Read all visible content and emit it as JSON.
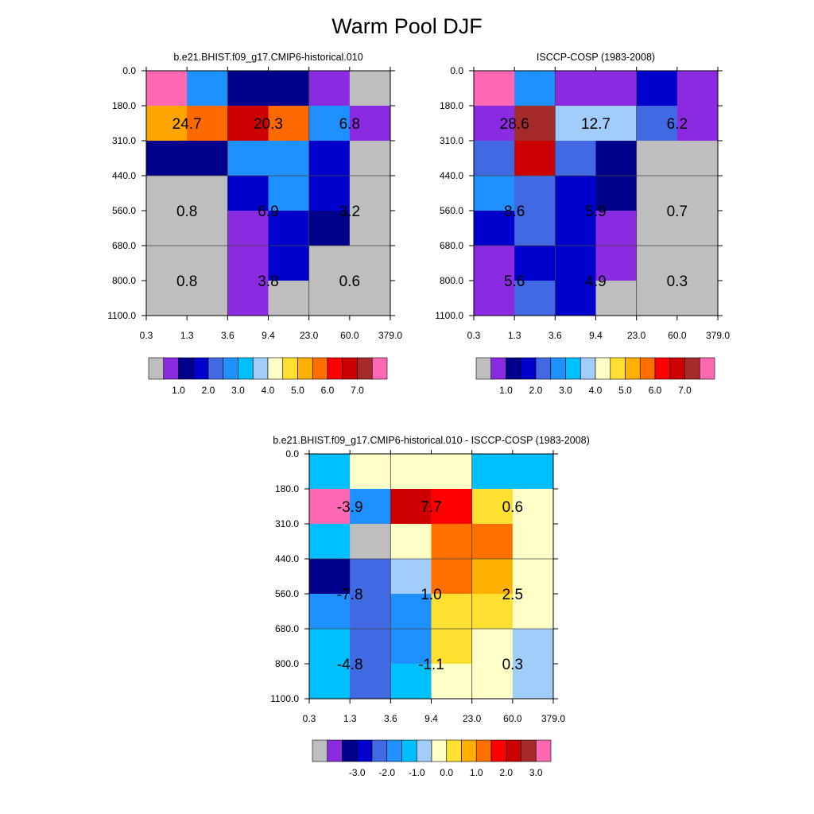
{
  "title": "Warm Pool DJF",
  "chart_data": [
    {
      "type": "heatmap",
      "title": "b.e21.BHIST.f09_g17.CMIP6-historical.010",
      "x_ticks": [
        "0.3",
        "1.3",
        "3.6",
        "9.4",
        "23.0",
        "60.0",
        "379.0"
      ],
      "y_ticks": [
        "0.0",
        "180.0",
        "310.0",
        "440.0",
        "560.0",
        "680.0",
        "800.0",
        "1100.0"
      ],
      "cells": [
        [
          "#FF69B4",
          "#1E90FF",
          "#00008B",
          "#00008B",
          "#8A2BE2",
          "#BEBEBE"
        ],
        [
          "#FFA500",
          "#FF6A00",
          "#CC0000",
          "#FF6A00",
          "#1E90FF",
          "#8A2BE2"
        ],
        [
          "#00008B",
          "#00008B",
          "#1E90FF",
          "#1E90FF",
          "#0000CD",
          "#BEBEBE"
        ],
        [
          "#BEBEBE",
          "#BEBEBE",
          "#0000CD",
          "#1E90FF",
          "#0000CD",
          "#BEBEBE"
        ],
        [
          "#BEBEBE",
          "#BEBEBE",
          "#8A2BE2",
          "#0000CD",
          "#00008B",
          "#BEBEBE"
        ],
        [
          "#BEBEBE",
          "#BEBEBE",
          "#8A2BE2",
          "#0000CD",
          "#BEBEBE",
          "#BEBEBE"
        ],
        [
          "#BEBEBE",
          "#BEBEBE",
          "#8A2BE2",
          "#BEBEBE",
          "#BEBEBE",
          "#BEBEBE"
        ]
      ],
      "annotations": [
        {
          "text": "24.7",
          "col": 1,
          "row": 1.5
        },
        {
          "text": "20.3",
          "col": 3,
          "row": 1.5
        },
        {
          "text": "6.8",
          "col": 5,
          "row": 1.5
        },
        {
          "text": "0.8",
          "col": 1,
          "row": 4
        },
        {
          "text": "6.9",
          "col": 3,
          "row": 4
        },
        {
          "text": "3.2",
          "col": 5,
          "row": 4
        },
        {
          "text": "0.8",
          "col": 1,
          "row": 6
        },
        {
          "text": "3.8",
          "col": 3,
          "row": 6
        },
        {
          "text": "0.6",
          "col": 5,
          "row": 6
        }
      ],
      "colorbar": {
        "colors": [
          "#BEBEBE",
          "#8A2BE2",
          "#00008B",
          "#0000CD",
          "#4169E1",
          "#1E90FF",
          "#00BFFF",
          "#A2CDFA",
          "#FFFFC8",
          "#FFE030",
          "#FFB000",
          "#FF7000",
          "#FF0000",
          "#CC0000",
          "#A52A2A",
          "#FF69B4"
        ],
        "labels": [
          "1.0",
          "2.0",
          "3.0",
          "4.0",
          "5.0",
          "6.0",
          "7.0"
        ],
        "label_start_index": 1
      }
    },
    {
      "type": "heatmap",
      "title": "ISCCP-COSP (1983-2008)",
      "x_ticks": [
        "0.3",
        "1.3",
        "3.6",
        "9.4",
        "23.0",
        "60.0",
        "379.0"
      ],
      "y_ticks": [
        "0.0",
        "180.0",
        "310.0",
        "440.0",
        "560.0",
        "680.0",
        "800.0",
        "1100.0"
      ],
      "cells": [
        [
          "#FF69B4",
          "#1E90FF",
          "#8A2BE2",
          "#8A2BE2",
          "#0000CD",
          "#8A2BE2"
        ],
        [
          "#8A2BE2",
          "#A52A2A",
          "#A2CDFA",
          "#A2CDFA",
          "#4169E1",
          "#8A2BE2"
        ],
        [
          "#4169E1",
          "#CC0000",
          "#4169E1",
          "#00008B",
          "#BEBEBE",
          "#BEBEBE"
        ],
        [
          "#1E90FF",
          "#4169E1",
          "#0000CD",
          "#00008B",
          "#BEBEBE",
          "#BEBEBE"
        ],
        [
          "#0000CD",
          "#4169E1",
          "#0000CD",
          "#8A2BE2",
          "#BEBEBE",
          "#BEBEBE"
        ],
        [
          "#8A2BE2",
          "#0000CD",
          "#0000CD",
          "#8A2BE2",
          "#BEBEBE",
          "#BEBEBE"
        ],
        [
          "#8A2BE2",
          "#4169E1",
          "#0000CD",
          "#BEBEBE",
          "#BEBEBE",
          "#BEBEBE"
        ]
      ],
      "annotations": [
        {
          "text": "28.6",
          "col": 1,
          "row": 1.5
        },
        {
          "text": "12.7",
          "col": 3,
          "row": 1.5
        },
        {
          "text": "6.2",
          "col": 5,
          "row": 1.5
        },
        {
          "text": "8.6",
          "col": 1,
          "row": 4
        },
        {
          "text": "5.9",
          "col": 3,
          "row": 4
        },
        {
          "text": "0.7",
          "col": 5,
          "row": 4
        },
        {
          "text": "5.6",
          "col": 1,
          "row": 6
        },
        {
          "text": "4.9",
          "col": 3,
          "row": 6
        },
        {
          "text": "0.3",
          "col": 5,
          "row": 6
        }
      ],
      "colorbar": {
        "colors": [
          "#BEBEBE",
          "#8A2BE2",
          "#00008B",
          "#0000CD",
          "#4169E1",
          "#1E90FF",
          "#00BFFF",
          "#A2CDFA",
          "#FFFFC8",
          "#FFE030",
          "#FFB000",
          "#FF7000",
          "#FF0000",
          "#CC0000",
          "#A52A2A",
          "#FF69B4"
        ],
        "labels": [
          "1.0",
          "2.0",
          "3.0",
          "4.0",
          "5.0",
          "6.0",
          "7.0"
        ],
        "label_start_index": 1
      }
    },
    {
      "type": "heatmap",
      "title": "b.e21.BHIST.f09_g17.CMIP6-historical.010 - ISCCP-COSP (1983-2008)",
      "x_ticks": [
        "0.3",
        "1.3",
        "3.6",
        "9.4",
        "23.0",
        "60.0",
        "379.0"
      ],
      "y_ticks": [
        "0.0",
        "180.0",
        "310.0",
        "440.0",
        "560.0",
        "680.0",
        "800.0",
        "1100.0"
      ],
      "cells": [
        [
          "#00BFFF",
          "#FFFFC8",
          "#FFFFC8",
          "#FFFFC8",
          "#00BFFF",
          "#00BFFF"
        ],
        [
          "#FF69B4",
          "#1E90FF",
          "#CC0000",
          "#FF0000",
          "#FFE030",
          "#FFFFC8"
        ],
        [
          "#00BFFF",
          "#BEBEBE",
          "#FFFFC8",
          "#FF7000",
          "#FF7000",
          "#FFFFC8"
        ],
        [
          "#00008B",
          "#4169E1",
          "#A2CDFA",
          "#FF7000",
          "#FFB000",
          "#FFFFC8"
        ],
        [
          "#1E90FF",
          "#4169E1",
          "#1E90FF",
          "#FFE030",
          "#FFE030",
          "#FFFFC8"
        ],
        [
          "#00BFFF",
          "#4169E1",
          "#1E90FF",
          "#FFE030",
          "#FFFFC8",
          "#A2CDFA"
        ],
        [
          "#00BFFF",
          "#4169E1",
          "#00BFFF",
          "#FFFFC8",
          "#FFFFC8",
          "#A2CDFA"
        ]
      ],
      "annotations": [
        {
          "text": "-3.9",
          "col": 1,
          "row": 1.5
        },
        {
          "text": "7.7",
          "col": 3,
          "row": 1.5
        },
        {
          "text": "0.6",
          "col": 5,
          "row": 1.5
        },
        {
          "text": "-7.8",
          "col": 1,
          "row": 4
        },
        {
          "text": "1.0",
          "col": 3,
          "row": 4
        },
        {
          "text": "2.5",
          "col": 5,
          "row": 4
        },
        {
          "text": "-4.8",
          "col": 1,
          "row": 6
        },
        {
          "text": "-1.1",
          "col": 3,
          "row": 6
        },
        {
          "text": "0.3",
          "col": 5,
          "row": 6
        }
      ],
      "colorbar": {
        "colors": [
          "#BEBEBE",
          "#8A2BE2",
          "#00008B",
          "#0000CD",
          "#4169E1",
          "#1E90FF",
          "#00BFFF",
          "#A2CDFA",
          "#FFFFC8",
          "#FFE030",
          "#FFB000",
          "#FF7000",
          "#FF0000",
          "#CC0000",
          "#A52A2A",
          "#FF69B4"
        ],
        "labels": [
          "-3.0",
          "-2.0",
          "-1.0",
          "0.0",
          "1.0",
          "2.0",
          "3.0"
        ],
        "label_start_index": 2
      }
    }
  ]
}
